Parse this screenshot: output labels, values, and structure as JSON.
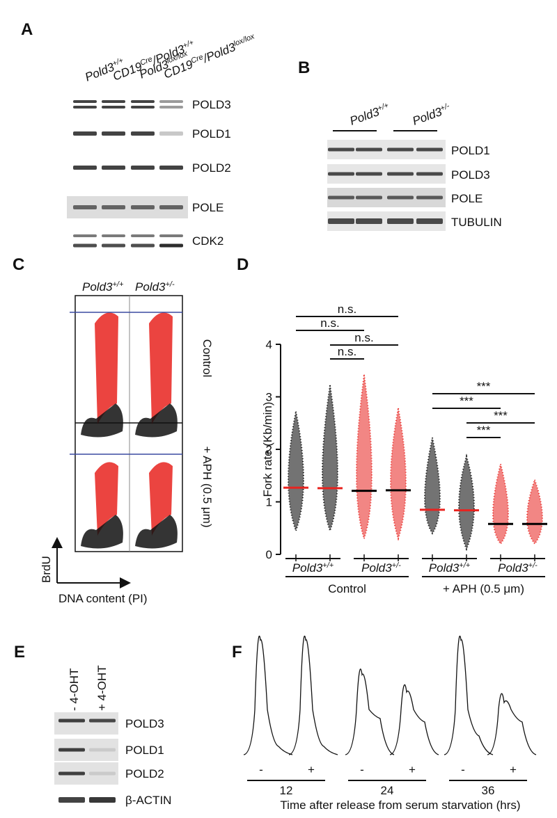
{
  "panel_a": {
    "letter": "A",
    "lanes": [
      [
        {
          "t": "Pold3"
        },
        {
          "s": "+/+"
        }
      ],
      [
        {
          "t": "CD19"
        },
        {
          "s": "Cre"
        },
        {
          "t": "/Pold3"
        },
        {
          "s": "+/+"
        }
      ],
      [
        {
          "t": "Pold3"
        },
        {
          "s": "lox/lox"
        }
      ],
      [
        {
          "t": "CD19"
        },
        {
          "s": "Cre"
        },
        {
          "t": "/Pold3"
        },
        {
          "s": "lox/lox"
        }
      ]
    ],
    "blots": [
      "POLD3",
      "POLD1",
      "POLD2",
      "POLE",
      "CDK2"
    ]
  },
  "panel_b": {
    "letter": "B",
    "groups": [
      [
        {
          "t": "Pold3"
        },
        {
          "s": "+/+"
        }
      ],
      [
        {
          "t": "Pold3"
        },
        {
          "s": "+/-"
        }
      ]
    ],
    "blots": [
      "POLD1",
      "POLD3",
      "POLE",
      "TUBULIN"
    ]
  },
  "panel_c": {
    "letter": "C",
    "columns": [
      [
        {
          "t": "Pold3"
        },
        {
          "s": "+/+"
        }
      ],
      [
        {
          "t": "Pold3"
        },
        {
          "s": "+/-"
        }
      ]
    ],
    "rows": [
      "Control",
      "+ APH (0.5 μm)"
    ],
    "y_axis": "BrdU",
    "x_axis": "DNA content (PI)"
  },
  "chart_data": {
    "type": "dot_plot",
    "letter": "D",
    "ylabel": "Fork rate (Kb/min)",
    "ylim": [
      0,
      4
    ],
    "yticks": [
      0,
      1,
      2,
      3,
      4
    ],
    "groups": [
      {
        "color": "#000000",
        "mean": 1.27,
        "min": 0.45,
        "max": 2.72
      },
      {
        "color": "#000000",
        "mean": 1.26,
        "min": 0.45,
        "max": 3.22
      },
      {
        "color": "#e8231f",
        "mean": 1.21,
        "min": 0.3,
        "max": 3.42
      },
      {
        "color": "#e8231f",
        "mean": 1.22,
        "min": 0.3,
        "max": 2.78
      },
      {
        "color": "#000000",
        "mean": 0.85,
        "min": 0.4,
        "max": 2.22
      },
      {
        "color": "#000000",
        "mean": 0.84,
        "min": 0.1,
        "max": 1.87
      },
      {
        "color": "#e8231f",
        "mean": 0.58,
        "min": 0.2,
        "max": 1.72
      },
      {
        "color": "#e8231f",
        "mean": 0.58,
        "min": 0.2,
        "max": 1.42
      }
    ],
    "genotypes": [
      [
        {
          "t": "Pold3"
        },
        {
          "s": "+/+"
        }
      ],
      [
        {
          "t": "Pold3"
        },
        {
          "s": "+/-"
        }
      ]
    ],
    "conditions": [
      "Control",
      "+ APH (0.5 μm)"
    ],
    "comparisons": [
      {
        "from": 0,
        "to": 3,
        "label": "n.s."
      },
      {
        "from": 0,
        "to": 2,
        "label": "n.s."
      },
      {
        "from": 1,
        "to": 3,
        "label": "n.s."
      },
      {
        "from": 1,
        "to": 2,
        "label": "n.s."
      },
      {
        "from": 4,
        "to": 7,
        "label": "***"
      },
      {
        "from": 4,
        "to": 6,
        "label": "***"
      },
      {
        "from": 5,
        "to": 7,
        "label": "***"
      },
      {
        "from": 5,
        "to": 6,
        "label": "***"
      }
    ]
  },
  "panel_e": {
    "letter": "E",
    "lanes": [
      "- 4-OHT",
      "+ 4-OHT"
    ],
    "blots": [
      "POLD3",
      "POLD1",
      "POLD2",
      "β-ACTIN"
    ]
  },
  "panel_f": {
    "letter": "F",
    "treatments": [
      "-",
      "+"
    ],
    "times": [
      "12",
      "24",
      "36"
    ],
    "x_axis": "Time after release from serum starvation (hrs)"
  }
}
